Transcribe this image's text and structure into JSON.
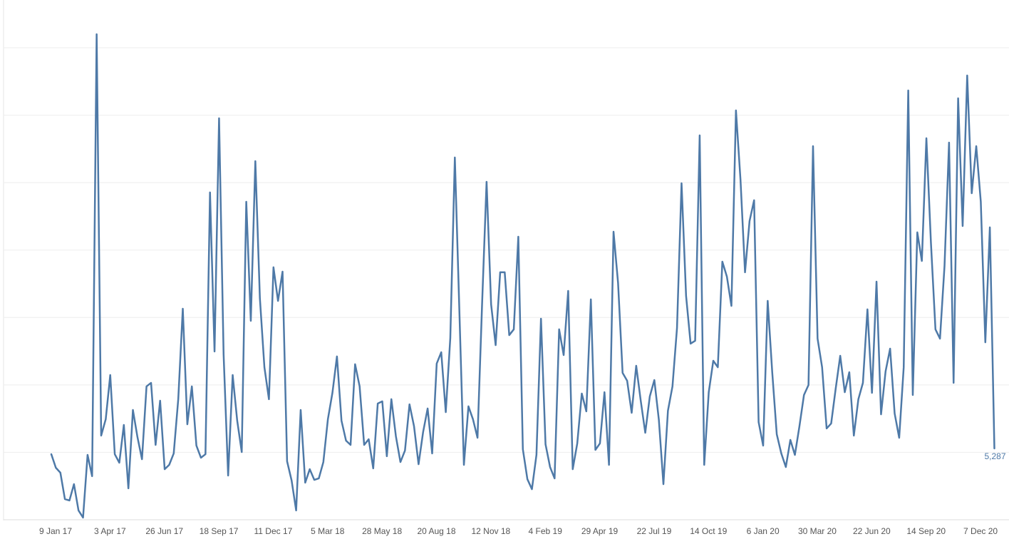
{
  "chart_data": {
    "type": "line",
    "categories": [
      "9 Jan 17",
      null,
      null,
      null,
      null,
      null,
      null,
      null,
      null,
      null,
      null,
      null,
      "3 Apr 17",
      null,
      null,
      null,
      null,
      null,
      null,
      null,
      null,
      null,
      null,
      null,
      "26 Jun 17",
      null,
      null,
      null,
      null,
      null,
      null,
      null,
      null,
      null,
      null,
      null,
      "18 Sep 17",
      null,
      null,
      null,
      null,
      null,
      null,
      null,
      null,
      null,
      null,
      null,
      "11 Dec 17",
      null,
      null,
      null,
      null,
      null,
      null,
      null,
      null,
      null,
      null,
      null,
      "5 Mar 18",
      null,
      null,
      null,
      null,
      null,
      null,
      null,
      null,
      null,
      null,
      null,
      "28 May 18",
      null,
      null,
      null,
      null,
      null,
      null,
      null,
      null,
      null,
      null,
      null,
      "20 Aug 18",
      null,
      null,
      null,
      null,
      null,
      null,
      null,
      null,
      null,
      null,
      null,
      "12 Nov 18",
      null,
      null,
      null,
      null,
      null,
      null,
      null,
      null,
      null,
      null,
      null,
      "4 Feb 19",
      null,
      null,
      null,
      null,
      null,
      null,
      null,
      null,
      null,
      null,
      null,
      "29 Apr 19",
      null,
      null,
      null,
      null,
      null,
      null,
      null,
      null,
      null,
      null,
      null,
      "22 Jul 19",
      null,
      null,
      null,
      null,
      null,
      null,
      null,
      null,
      null,
      null,
      null,
      "14 Oct 19",
      null,
      null,
      null,
      null,
      null,
      null,
      null,
      null,
      null,
      null,
      null,
      "6 Jan 20",
      null,
      null,
      null,
      null,
      null,
      null,
      null,
      null,
      null,
      null,
      null,
      "30 Mar 20",
      null,
      null,
      null,
      null,
      null,
      null,
      null,
      null,
      null,
      null,
      null,
      "22 Jun 20",
      null,
      null,
      null,
      null,
      null,
      null,
      null,
      null,
      null,
      null,
      null,
      "14 Sep 20",
      null,
      null,
      null,
      null,
      null,
      null,
      null,
      null,
      null,
      null,
      null,
      "7 Dec 20",
      null,
      null,
      null,
      null
    ],
    "values": [
      4860,
      3860,
      3490,
      1530,
      1430,
      2640,
      690,
      160,
      4810,
      3230,
      36000,
      6240,
      7450,
      10730,
      4860,
      4230,
      7030,
      2330,
      8140,
      6130,
      4490,
      9890,
      10150,
      5550,
      8830,
      3750,
      4070,
      4920,
      8940,
      15650,
      7080,
      9890,
      5500,
      4600,
      4860,
      24270,
      12480,
      29770,
      12270,
      3280,
      10730,
      7350,
      5020,
      23580,
      14750,
      26590,
      16440,
      11310,
      8940,
      18720,
      16230,
      18400,
      4340,
      2910,
      690,
      8140,
      2750,
      3750,
      2960,
      3070,
      4280,
      7450,
      9410,
      12110,
      7350,
      5870,
      5550,
      11530,
      9890,
      5550,
      5970,
      3810,
      8620,
      8780,
      4710,
      8940,
      6190,
      4280,
      5130,
      8560,
      6930,
      4120,
      6500,
      8250,
      4920,
      11580,
      12420,
      7980,
      13480,
      26860,
      15490,
      4070,
      8410,
      7450,
      6080,
      15910,
      25060,
      15970,
      12950,
      18350,
      18350,
      13690,
      14120,
      20990,
      5230,
      3010,
      2270,
      4810,
      14910,
      5600,
      3910,
      3070,
      14120,
      12210,
      16970,
      3750,
      5660,
      9360,
      8040,
      16340,
      5180,
      5660,
      9460,
      4070,
      21360,
      17550,
      10890,
      10310,
      7930,
      11420,
      8830,
      6450,
      9150,
      10360,
      7400,
      2640,
      8090,
      9890,
      14220,
      24950,
      16600,
      13060,
      13270,
      28500,
      4070,
      9460,
      11790,
      11310,
      19140,
      18030,
      15860,
      30350,
      25220,
      18350,
      22150,
      23690,
      7240,
      5500,
      16230,
      10940,
      6340,
      4920,
      3910,
      5920,
      4810,
      6930,
      9250,
      9990,
      27700,
      13430,
      11310,
      6770,
      7140,
      9730,
      12160,
      9460,
      10940,
      6240,
      8940,
      10150,
      15600,
      9410,
      17660,
      7820,
      11000,
      12690,
      7880,
      6080,
      11310,
      31830,
      9250,
      21310,
      19190,
      28290,
      20570,
      14120,
      13430,
      18820,
      27970,
      10150,
      31250,
      21780,
      32940,
      24210,
      27700,
      23580,
      13160,
      21680,
      5287
    ],
    "end_label": "5,287",
    "color": "#4e79a7",
    "ylim": [
      0,
      37800
    ],
    "yticks": [
      0,
      5000,
      10000,
      15000,
      20000,
      25000,
      30000,
      35000
    ],
    "grid": true
  }
}
